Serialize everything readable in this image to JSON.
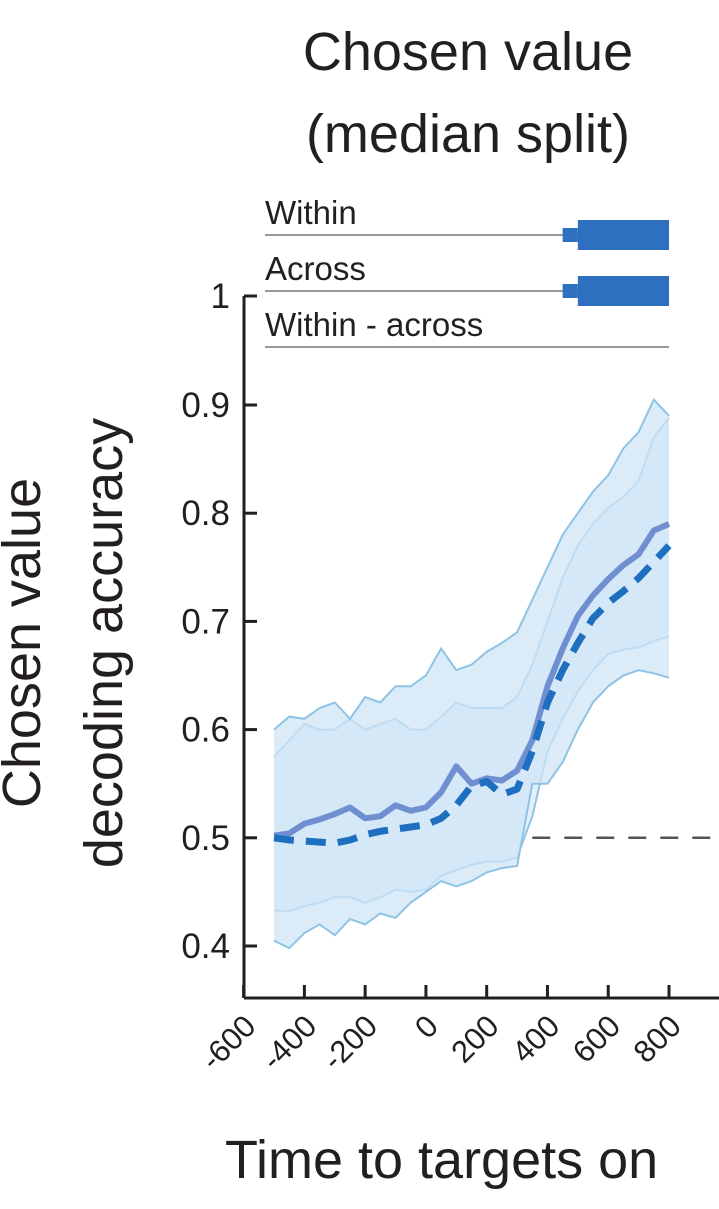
{
  "chart_data": {
    "type": "line",
    "title_line1": "Chosen value",
    "title_line2": "(median split)",
    "ylabel_line1": "Chosen value",
    "ylabel_line2": "decoding accuracy",
    "xlabel": "Time to targets on",
    "xlim": [
      -600,
      800
    ],
    "ylim": [
      0.37,
      1.0
    ],
    "yticks": [
      0.4,
      0.5,
      0.6,
      0.7,
      0.8,
      0.9,
      1
    ],
    "ytick_labels": [
      "0.4",
      "0.5",
      "0.6",
      "0.7",
      "0.8",
      "0.9",
      "1"
    ],
    "xticks": [
      -600,
      -400,
      -200,
      0,
      200,
      400,
      600,
      800
    ],
    "xtick_labels": [
      "-600",
      "-400",
      "-200",
      "0",
      "200",
      "400",
      "600",
      "800"
    ],
    "chance_level": 0.5,
    "significance_bars": [
      {
        "label": "Within",
        "color": "#2e6fc0",
        "thin_start": 450,
        "thick_start": 500,
        "end": 800
      },
      {
        "label": "Across",
        "color": "#2e6fc0",
        "thin_start": 450,
        "thick_start": 500,
        "end": 800
      },
      {
        "label": "Within - across",
        "color": "#2e6fc0",
        "thin_start": null,
        "thick_start": null,
        "end": null
      }
    ],
    "series": [
      {
        "style": "solid",
        "color": "#6f8fd0",
        "x": [
          -500,
          -450,
          -400,
          -350,
          -300,
          -250,
          -200,
          -150,
          -100,
          -50,
          0,
          50,
          100,
          150,
          200,
          250,
          300,
          350,
          400,
          450,
          500,
          550,
          600,
          650,
          700,
          750,
          800
        ],
        "y": [
          0.502,
          0.504,
          0.513,
          0.517,
          0.522,
          0.528,
          0.518,
          0.52,
          0.53,
          0.525,
          0.528,
          0.542,
          0.566,
          0.55,
          0.555,
          0.553,
          0.562,
          0.59,
          0.64,
          0.675,
          0.705,
          0.724,
          0.739,
          0.752,
          0.762,
          0.784,
          0.79
        ],
        "upper": [
          0.575,
          0.59,
          0.605,
          0.6,
          0.6,
          0.61,
          0.6,
          0.605,
          0.61,
          0.6,
          0.6,
          0.612,
          0.625,
          0.62,
          0.62,
          0.62,
          0.63,
          0.66,
          0.7,
          0.74,
          0.77,
          0.79,
          0.805,
          0.815,
          0.83,
          0.87,
          0.888
        ],
        "lower": [
          0.433,
          0.432,
          0.437,
          0.44,
          0.445,
          0.445,
          0.44,
          0.445,
          0.452,
          0.45,
          0.452,
          0.465,
          0.47,
          0.475,
          0.478,
          0.478,
          0.482,
          0.52,
          0.58,
          0.61,
          0.635,
          0.655,
          0.67,
          0.674,
          0.676,
          0.682,
          0.686
        ]
      },
      {
        "style": "dashed",
        "color": "#1f6fc0",
        "x": [
          -500,
          -450,
          -400,
          -350,
          -300,
          -250,
          -200,
          -150,
          -100,
          -50,
          0,
          50,
          100,
          150,
          200,
          250,
          300,
          350,
          400,
          450,
          500,
          550,
          600,
          650,
          700,
          750,
          800
        ],
        "y": [
          0.5,
          0.498,
          0.497,
          0.496,
          0.495,
          0.498,
          0.503,
          0.506,
          0.508,
          0.51,
          0.512,
          0.518,
          0.53,
          0.548,
          0.552,
          0.54,
          0.545,
          0.58,
          0.625,
          0.655,
          0.68,
          0.703,
          0.717,
          0.728,
          0.74,
          0.755,
          0.77
        ],
        "upper": [
          0.6,
          0.612,
          0.61,
          0.62,
          0.625,
          0.61,
          0.63,
          0.625,
          0.64,
          0.64,
          0.65,
          0.675,
          0.655,
          0.66,
          0.672,
          0.68,
          0.69,
          0.72,
          0.75,
          0.78,
          0.8,
          0.82,
          0.835,
          0.86,
          0.875,
          0.905,
          0.89
        ],
        "lower": [
          0.405,
          0.398,
          0.412,
          0.42,
          0.41,
          0.425,
          0.42,
          0.43,
          0.426,
          0.44,
          0.45,
          0.46,
          0.455,
          0.46,
          0.468,
          0.472,
          0.474,
          0.55,
          0.55,
          0.57,
          0.6,
          0.625,
          0.64,
          0.65,
          0.655,
          0.652,
          0.648
        ]
      }
    ]
  }
}
